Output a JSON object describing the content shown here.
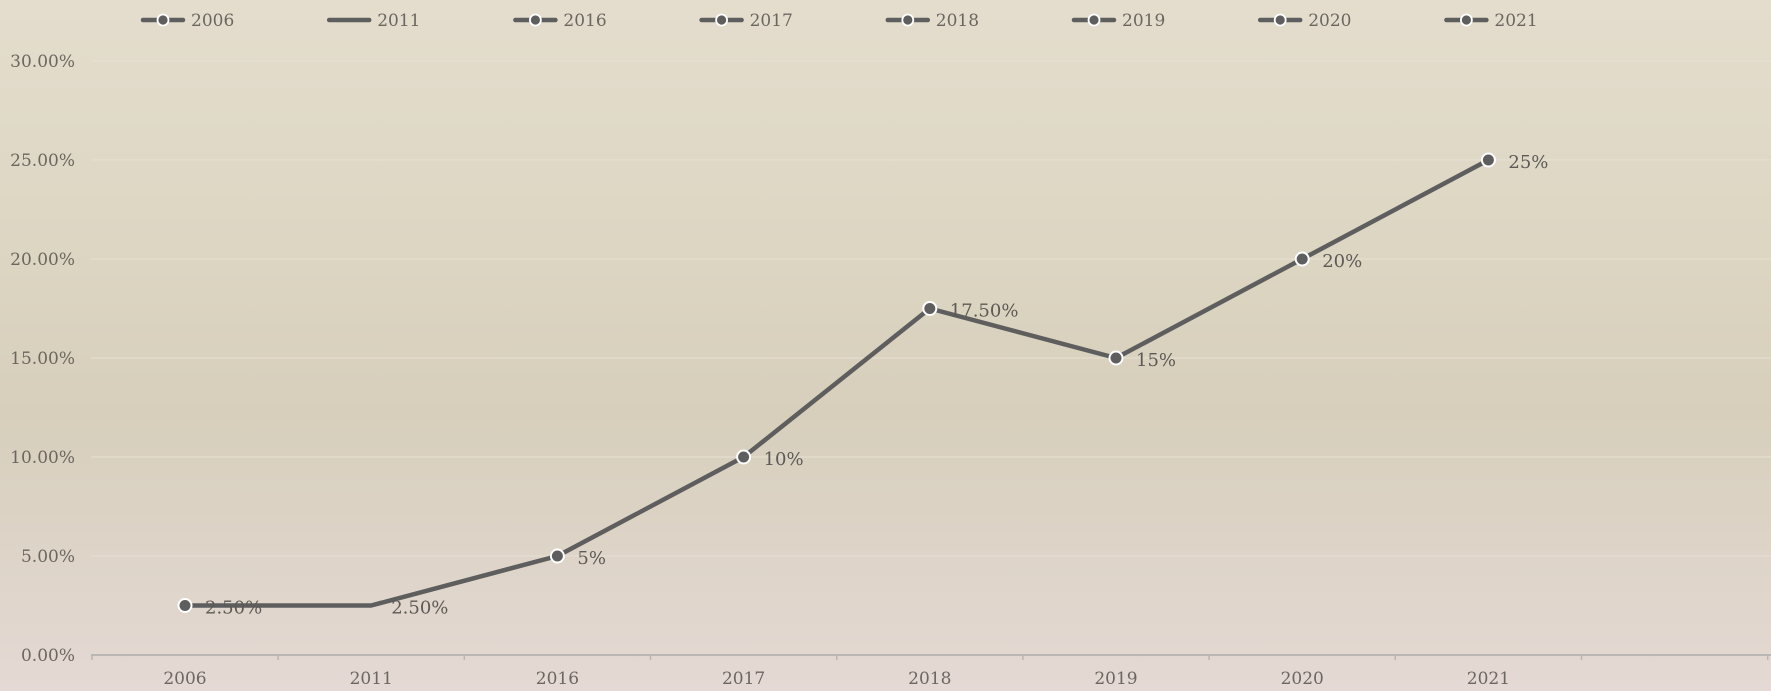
{
  "chart_data": {
    "type": "line",
    "categories": [
      "2006",
      "2011",
      "2016",
      "2017",
      "2018",
      "2019",
      "2020",
      "2021"
    ],
    "values": [
      2.5,
      2.5,
      5,
      10,
      17.5,
      15,
      20,
      25
    ],
    "data_labels": [
      "2.50%",
      "2.50%",
      "5%",
      "10%",
      "17.50%",
      "15%",
      "20%",
      "25%"
    ],
    "ylim": [
      0,
      30
    ],
    "yticks": [
      "0.00%",
      "5.00%",
      "10.00%",
      "15.00%",
      "20.00%",
      "25.00%",
      "30.00%"
    ],
    "legend": {
      "placement": "top",
      "entries": [
        {
          "label": "2006",
          "marker": true
        },
        {
          "label": "2011",
          "marker": false
        },
        {
          "label": "2016",
          "marker": true
        },
        {
          "label": "2017",
          "marker": true
        },
        {
          "label": "2018",
          "marker": true
        },
        {
          "label": "2019",
          "marker": true
        },
        {
          "label": "2020",
          "marker": true
        },
        {
          "label": "2021",
          "marker": true
        }
      ]
    },
    "grid": true,
    "colors": {
      "line": "#5e5e5e",
      "marker_stroke": "#ffffff",
      "axis": "#b9b7b3"
    }
  }
}
